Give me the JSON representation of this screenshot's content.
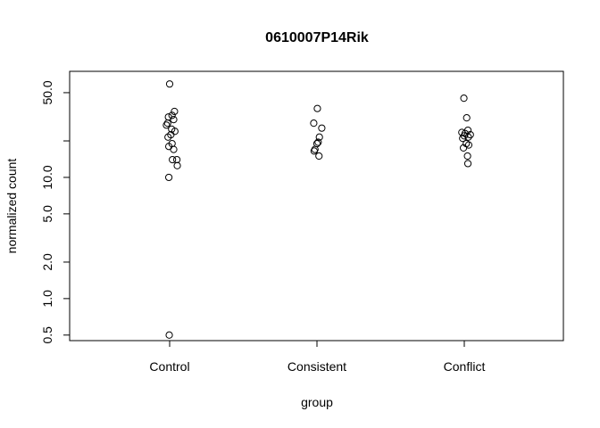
{
  "chart_data": {
    "type": "scatter",
    "title": "0610007P14Rik",
    "xlabel": "group",
    "ylabel": "normalized count",
    "y_scale": "log",
    "ylim": [
      0.45,
      75
    ],
    "y_ticks": [
      {
        "value": 0.5,
        "label": "0.5"
      },
      {
        "value": 1.0,
        "label": "1.0"
      },
      {
        "value": 2.0,
        "label": "2.0"
      },
      {
        "value": 5.0,
        "label": "5.0"
      },
      {
        "value": 10.0,
        "label": "10.0"
      },
      {
        "value": 50.0,
        "label": "50.0"
      }
    ],
    "y_minor_ticks": [
      20
    ],
    "categories": [
      "Control",
      "Consistent",
      "Conflict"
    ],
    "grid": false,
    "points": [
      {
        "group": "Control",
        "jitter": 0.0,
        "value": 59.0
      },
      {
        "group": "Control",
        "jitter": 0.12,
        "value": 35.0
      },
      {
        "group": "Control",
        "jitter": 0.06,
        "value": 32.5
      },
      {
        "group": "Control",
        "jitter": -0.03,
        "value": 31.5
      },
      {
        "group": "Control",
        "jitter": 0.1,
        "value": 30.0
      },
      {
        "group": "Control",
        "jitter": -0.05,
        "value": 28.0
      },
      {
        "group": "Control",
        "jitter": -0.08,
        "value": 27.0
      },
      {
        "group": "Control",
        "jitter": 0.05,
        "value": 25.0
      },
      {
        "group": "Control",
        "jitter": 0.13,
        "value": 24.0
      },
      {
        "group": "Control",
        "jitter": 0.03,
        "value": 22.5
      },
      {
        "group": "Control",
        "jitter": -0.04,
        "value": 21.5
      },
      {
        "group": "Control",
        "jitter": 0.06,
        "value": 19.0
      },
      {
        "group": "Control",
        "jitter": -0.02,
        "value": 18.0
      },
      {
        "group": "Control",
        "jitter": 0.1,
        "value": 17.0
      },
      {
        "group": "Control",
        "jitter": 0.07,
        "value": 14.0
      },
      {
        "group": "Control",
        "jitter": 0.18,
        "value": 14.0
      },
      {
        "group": "Control",
        "jitter": 0.19,
        "value": 12.5
      },
      {
        "group": "Control",
        "jitter": -0.02,
        "value": 10.0
      },
      {
        "group": "Control",
        "jitter": -0.01,
        "value": 0.5
      },
      {
        "group": "Consistent",
        "jitter": 0.01,
        "value": 37.0
      },
      {
        "group": "Consistent",
        "jitter": -0.08,
        "value": 28.0
      },
      {
        "group": "Consistent",
        "jitter": 0.12,
        "value": 25.5
      },
      {
        "group": "Consistent",
        "jitter": 0.06,
        "value": 21.5
      },
      {
        "group": "Consistent",
        "jitter": 0.03,
        "value": 19.5
      },
      {
        "group": "Consistent",
        "jitter": 0.0,
        "value": 19.0
      },
      {
        "group": "Consistent",
        "jitter": -0.05,
        "value": 17.0
      },
      {
        "group": "Consistent",
        "jitter": -0.07,
        "value": 16.5
      },
      {
        "group": "Consistent",
        "jitter": 0.05,
        "value": 15.0
      },
      {
        "group": "Conflict",
        "jitter": -0.01,
        "value": 45.0
      },
      {
        "group": "Conflict",
        "jitter": 0.06,
        "value": 31.0
      },
      {
        "group": "Conflict",
        "jitter": 0.09,
        "value": 24.5
      },
      {
        "group": "Conflict",
        "jitter": -0.06,
        "value": 23.5
      },
      {
        "group": "Conflict",
        "jitter": 0.02,
        "value": 23.0
      },
      {
        "group": "Conflict",
        "jitter": 0.15,
        "value": 22.5
      },
      {
        "group": "Conflict",
        "jitter": 0.0,
        "value": 22.0
      },
      {
        "group": "Conflict",
        "jitter": 0.1,
        "value": 21.5
      },
      {
        "group": "Conflict",
        "jitter": -0.04,
        "value": 21.0
      },
      {
        "group": "Conflict",
        "jitter": 0.05,
        "value": 19.0
      },
      {
        "group": "Conflict",
        "jitter": 0.11,
        "value": 18.5
      },
      {
        "group": "Conflict",
        "jitter": -0.02,
        "value": 17.5
      },
      {
        "group": "Conflict",
        "jitter": 0.08,
        "value": 15.0
      },
      {
        "group": "Conflict",
        "jitter": 0.09,
        "value": 13.0
      }
    ]
  }
}
